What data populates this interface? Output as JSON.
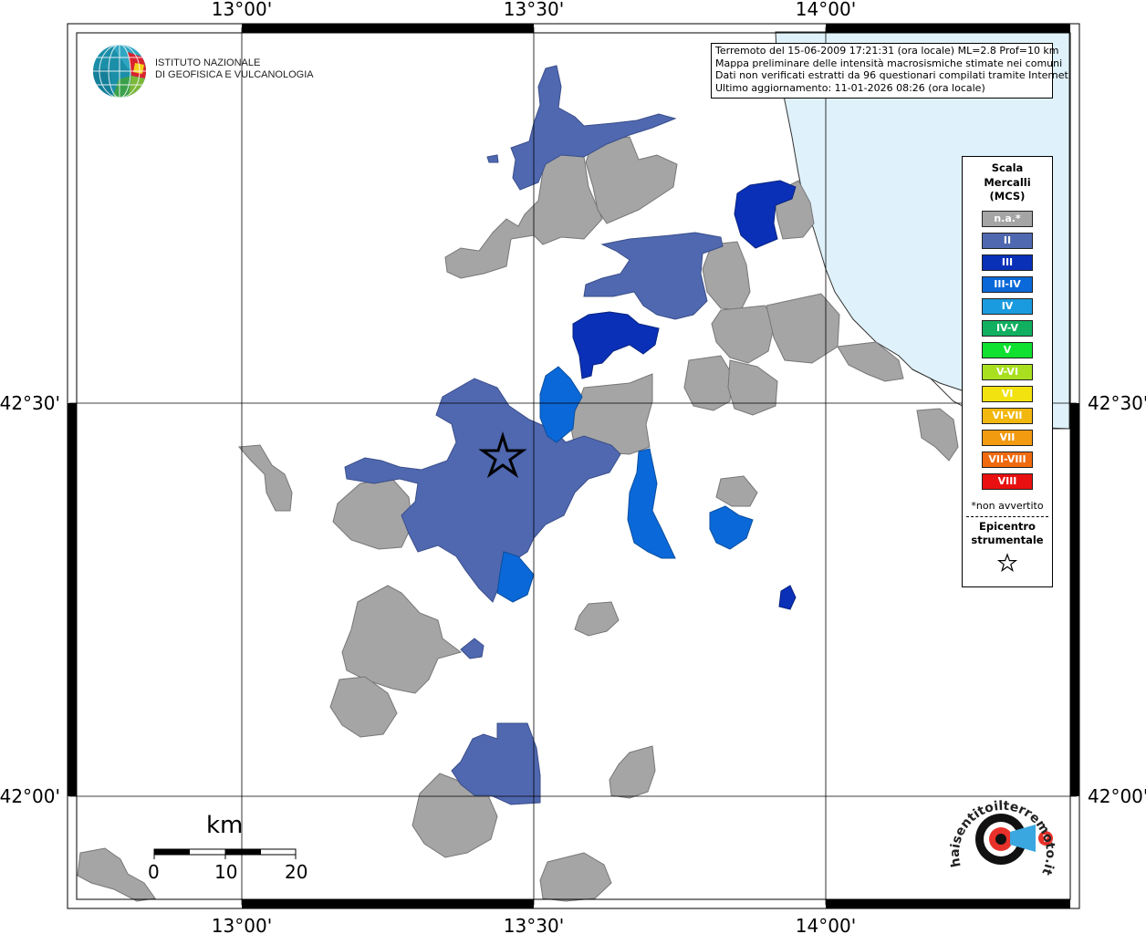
{
  "info": {
    "line1": "Terremoto del 15-06-2009 17:21:31 (ora locale) ML=2.8 Prof=10 km",
    "line2": "Mappa preliminare delle intensità macrosismiche stimate nei comuni",
    "line3": "Dati non verificati estratti da 96 questionari compilati tramite Internet.",
    "line4": "Ultimo aggiornamento: 11-01-2026 08:26 (ora locale)"
  },
  "axes": {
    "top": [
      "13°00'",
      "13°30'",
      "14°00'"
    ],
    "bottom": [
      "13°00'",
      "13°30'",
      "14°00'"
    ],
    "left": [
      "42°30'",
      "42°00'"
    ],
    "right": [
      "42°30'",
      "42°00'"
    ]
  },
  "logo": {
    "line1": "ISTITUTO NAZIONALE",
    "line2": "DI GEOFISICA E VULCANOLOGIA"
  },
  "legend": {
    "title1": "Scala",
    "title2": "Mercalli",
    "title3": "(MCS)",
    "classes": [
      {
        "label": "n.a.*",
        "color": "#a5a5a5"
      },
      {
        "label": "II",
        "color": "#4f68b0"
      },
      {
        "label": "III",
        "color": "#0a30b8"
      },
      {
        "label": "III-IV",
        "color": "#0b68d8"
      },
      {
        "label": "IV",
        "color": "#1a9be0"
      },
      {
        "label": "IV-V",
        "color": "#10b060"
      },
      {
        "label": "V",
        "color": "#10e030"
      },
      {
        "label": "V-VI",
        "color": "#a8e020"
      },
      {
        "label": "VI",
        "color": "#f2e210"
      },
      {
        "label": "VI-VII",
        "color": "#f2b810"
      },
      {
        "label": "VII",
        "color": "#f29a10"
      },
      {
        "label": "VII-VIII",
        "color": "#f06a10"
      },
      {
        "label": "VIII",
        "color": "#e81010"
      }
    ],
    "note": "*non avvertito",
    "epi1": "Epicentro",
    "epi2": "strumentale"
  },
  "scale": {
    "unit": "km",
    "ticks": [
      "0",
      "10",
      "20"
    ]
  },
  "colors": {
    "sea": "#dff2fb",
    "na": "#a5a5a5",
    "ii": "#4f68b0",
    "iii": "#0a30b8",
    "iii_iv": "#0b68d8"
  },
  "hsti_logo": "haisentitoilterremoto.it logo"
}
